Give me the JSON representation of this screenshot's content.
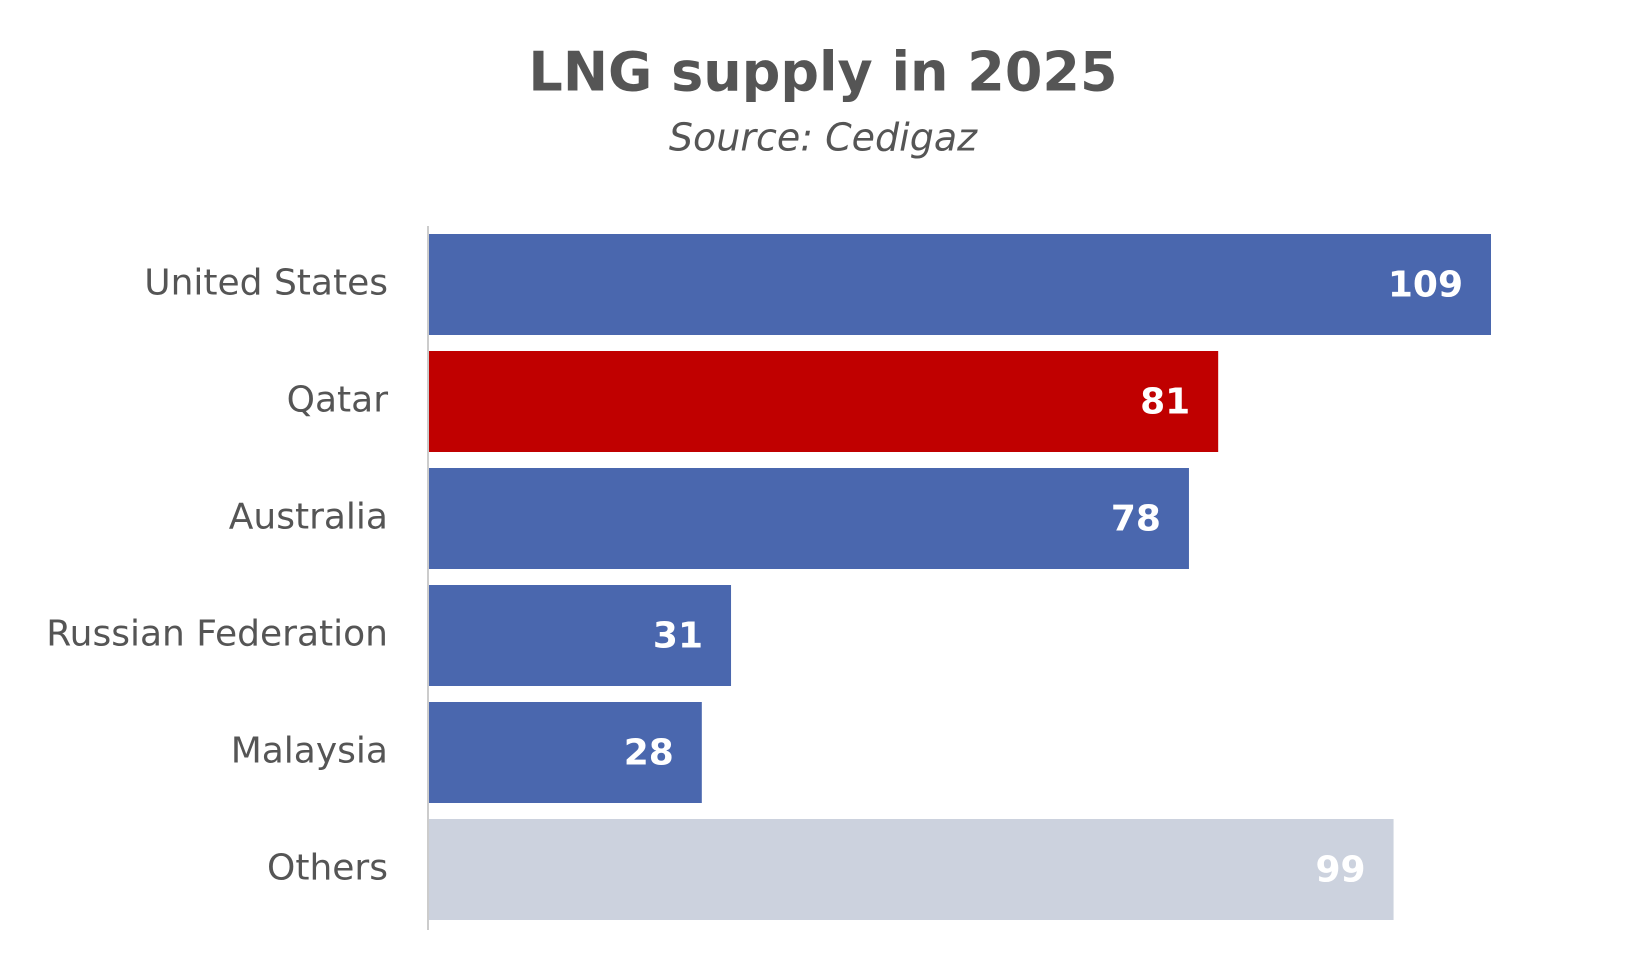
{
  "chart_data": {
    "type": "bar",
    "orientation": "horizontal",
    "title": "LNG supply in 2025",
    "subtitle": "Source: Cedigaz",
    "categories": [
      "United States",
      "Qatar",
      "Australia",
      "Russian Federation",
      "Malaysia",
      "Others"
    ],
    "values": [
      109,
      81,
      78,
      31,
      28,
      99
    ],
    "colors": [
      "#4a67ae",
      "#c00000",
      "#4a67ae",
      "#4a67ae",
      "#4a67ae",
      "#ccd2de"
    ]
  }
}
